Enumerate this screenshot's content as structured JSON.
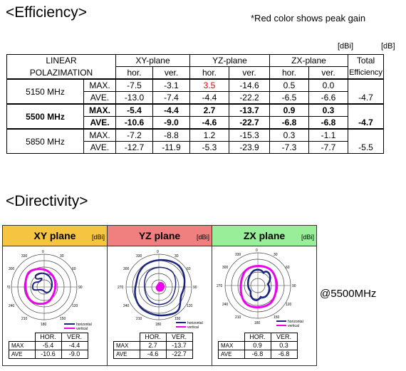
{
  "efficiency": {
    "title": "<Efficiency>",
    "note": "*Red color shows peak gain",
    "unit_dbi": "[dBi]",
    "unit_db": "[dB]",
    "header": {
      "linear": "LINEAR",
      "polarization": "POLAZIMATION",
      "xy": "XY-plane",
      "yz": "YZ-plane",
      "zx": "ZX-plane",
      "total": "Total",
      "efficiency": "Efficiency",
      "hor": "hor.",
      "ver": "ver."
    },
    "rows": [
      {
        "freq": "5150 MHz",
        "max": {
          "label": "MAX.",
          "xy_h": "-7.5",
          "xy_v": "-3.1",
          "yz_h": "3.5",
          "yz_v": "-14.6",
          "zx_h": "0.5",
          "zx_v": "0.0"
        },
        "ave": {
          "label": "AVE.",
          "xy_h": "-13.0",
          "xy_v": "-7.4",
          "yz_h": "-4.4",
          "yz_v": "-22.2",
          "zx_h": "-6.5",
          "zx_v": "-6.6",
          "total": "-4.7"
        }
      },
      {
        "freq": "5500 MHz",
        "max": {
          "label": "MAX.",
          "xy_h": "-5.4",
          "xy_v": "-4.4",
          "yz_h": "2.7",
          "yz_v": "-13.7",
          "zx_h": "0.9",
          "zx_v": "0.3"
        },
        "ave": {
          "label": "AVE.",
          "xy_h": "-10.6",
          "xy_v": "-9.0",
          "yz_h": "-4.6",
          "yz_v": "-22.7",
          "zx_h": "-6.8",
          "zx_v": "-6.8",
          "total": "-4.7"
        }
      },
      {
        "freq": "5850 MHz",
        "max": {
          "label": "MAX.",
          "xy_h": "-7.2",
          "xy_v": "-8.8",
          "yz_h": "1.2",
          "yz_v": "-15.3",
          "zx_h": "0.3",
          "zx_v": "-1.1"
        },
        "ave": {
          "label": "AVE.",
          "xy_h": "-12.7",
          "xy_v": "-11.9",
          "yz_h": "-5.3",
          "yz_v": "-23.9",
          "zx_h": "-7.3",
          "zx_v": "-7.7",
          "total": "-5.5"
        }
      }
    ],
    "peak_color": "#e00000"
  },
  "directivity": {
    "title": "<Directivity>",
    "at_freq": "@5500MHz",
    "panels": [
      {
        "name": "XY plane",
        "unit": "[dBi]",
        "color": "#f5c542",
        "angles": {
          "a0": "0",
          "a30": "30",
          "a60": "60",
          "a90": "90",
          "a120": "120",
          "a150": "150",
          "a180": "180",
          "a210": "210",
          "a240": "240",
          "a270": "270",
          "a300": "300",
          "a330": "330"
        },
        "legend_h": "horizontal",
        "legend_v": "vertical",
        "table": {
          "col_h": "HOR.",
          "col_v": "VER.",
          "max_label": "MAX",
          "ave_label": "AVE",
          "max_h": "-5.4",
          "max_v": "-4.4",
          "ave_h": "-10.6",
          "ave_v": "-9.0"
        }
      },
      {
        "name": "YZ plane",
        "unit": "[dBi]",
        "color": "#f08080",
        "angles": {
          "a0": "0",
          "a30": "30",
          "a60": "60",
          "a90": "90",
          "a120": "120",
          "a150": "150",
          "a180": "180",
          "a210": "210",
          "a240": "240",
          "a270": "270",
          "a300": "300",
          "a330": "330"
        },
        "legend_h": "horizontal",
        "legend_v": "vertical",
        "table": {
          "col_h": "HOR.",
          "col_v": "VER.",
          "max_label": "MAX",
          "ave_label": "AVE",
          "max_h": "2.7",
          "max_v": "-13.7",
          "ave_h": "-4.6",
          "ave_v": "-22.7"
        }
      },
      {
        "name": "ZX plane",
        "unit": "[dBi]",
        "color": "#99ee99",
        "angles": {
          "a0": "0",
          "a30": "30",
          "a60": "60",
          "a90": "90",
          "a120": "120",
          "a150": "150",
          "a180": "180",
          "a210": "210",
          "a240": "240",
          "a270": "270",
          "a300": "300",
          "a330": "330"
        },
        "legend_h": "horizontal",
        "legend_v": "vertical",
        "table": {
          "col_h": "HOR.",
          "col_v": "VER.",
          "max_label": "MAX",
          "ave_label": "AVE",
          "max_h": "0.9",
          "max_v": "0.3",
          "ave_h": "-6.8",
          "ave_v": "-6.8"
        }
      }
    ],
    "series_colors": {
      "horizontal": "#1a237e",
      "vertical": "#ee00ee"
    }
  }
}
